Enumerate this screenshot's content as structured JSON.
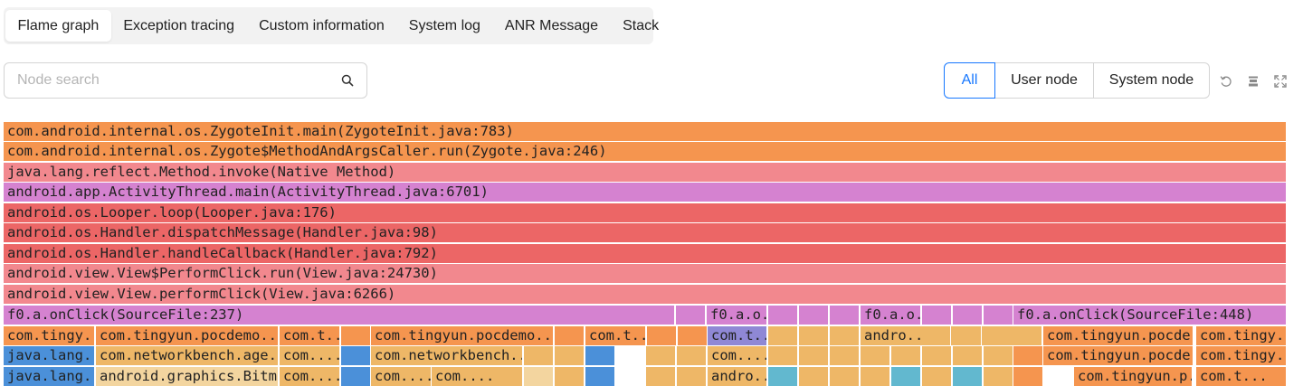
{
  "tabs": [
    {
      "label": "Flame graph",
      "active": true
    },
    {
      "label": "Exception tracing",
      "active": false
    },
    {
      "label": "Custom information",
      "active": false
    },
    {
      "label": "System log",
      "active": false
    },
    {
      "label": "ANR Message",
      "active": false
    },
    {
      "label": "Stack",
      "active": false
    }
  ],
  "search": {
    "placeholder": "Node search",
    "value": "",
    "icon": "search-icon"
  },
  "filter": {
    "all": "All",
    "user": "User node",
    "system": "System node",
    "selected": "All"
  },
  "toolbar": {
    "icons": [
      "reset-icon",
      "download-icon",
      "fullscreen-icon"
    ]
  },
  "colors": {
    "accent": "#1677ff",
    "orange": "#f5954f",
    "salmon": "#f2888e",
    "magenta": "#d582d0",
    "red": "#ec6666",
    "blue": "#4b90d9",
    "tan": "#eeb767",
    "sand": "#f3d59f",
    "teal": "#62b8cf",
    "purple": "#8f88d5"
  },
  "flame": {
    "rows": [
      [
        "com.android.internal.os.ZygoteInit.main(ZygoteInit.java:783)"
      ],
      [
        "com.android.internal.os.Zygote$MethodAndArgsCaller.run(Zygote.java:246)"
      ],
      [
        "java.lang.reflect.Method.invoke(Native Method)"
      ],
      [
        "android.app.ActivityThread.main(ActivityThread.java:6701)"
      ],
      [
        "android.os.Looper.loop(Looper.java:176)"
      ],
      [
        "android.os.Handler.dispatchMessage(Handler.java:98)"
      ],
      [
        "android.os.Handler.handleCallback(Handler.java:792)"
      ],
      [
        "android.view.View$PerformClick.run(View.java:24730)"
      ],
      [
        "android.view.View.performClick(View.java:6266)"
      ],
      [
        "f0.a.onClick(SourceFile:237)",
        "",
        "f0.a.o...",
        "",
        "",
        "",
        "f0.a.o...",
        "",
        "",
        "",
        "f0.a.onClick(SourceFile:448)"
      ],
      [
        "com.tingy...",
        "com.tingyun.pocdemo....",
        "com.t...",
        "",
        "com.tingyun.pocdemo....",
        "",
        "com.t...",
        "",
        "",
        "com.t...",
        "",
        "",
        "",
        "",
        "andro...",
        "",
        "",
        "",
        "com.tingyun.pocde...",
        "com.tingy..."
      ],
      [
        "java.lang....",
        "com.networkbench.age...",
        "com....",
        "",
        "com.networkbench...",
        "",
        "",
        "",
        "",
        "",
        "com....",
        "",
        "",
        "",
        "",
        "",
        "",
        "",
        "",
        "",
        "com.tingyun.pocde...",
        "com.tingy..."
      ],
      [
        "java.lang....",
        "android.graphics.Bitma...",
        "com....",
        "",
        "com....",
        "com....",
        "",
        "",
        "",
        "",
        "",
        "",
        "andro...",
        "",
        "",
        "",
        "",
        "",
        "",
        "",
        "",
        "",
        "",
        "",
        "com.tingyun.p...",
        "com.t..."
      ]
    ]
  }
}
